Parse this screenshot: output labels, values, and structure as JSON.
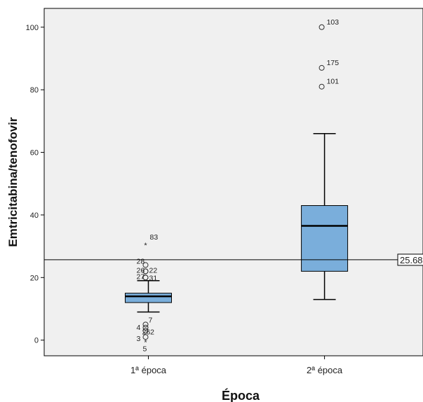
{
  "chart_data": {
    "type": "boxplot",
    "title": "",
    "xlabel": "Época",
    "ylabel": "Emtricitabina/tenofovir",
    "ylim": [
      -5,
      106
    ],
    "yticks": [
      0,
      20,
      40,
      60,
      80,
      100
    ],
    "grid": false,
    "categories": [
      "1ª época",
      "2ª época"
    ],
    "boxes": [
      {
        "category": "1ª época",
        "whisker_low": 9,
        "q1": 12,
        "median": 14,
        "q3": 15,
        "whisker_high": 19,
        "outliers": [
          {
            "label": "83",
            "value": 31,
            "type": "extreme"
          },
          {
            "label": "28",
            "value": 24,
            "type": "mild"
          },
          {
            "label": "26",
            "value": 22,
            "type": "mild"
          },
          {
            "label": "22",
            "value": 22,
            "type": "mild"
          },
          {
            "label": "27",
            "value": 20,
            "type": "mild"
          },
          {
            "label": "31",
            "value": 20,
            "type": "mild"
          },
          {
            "label": "7",
            "value": 5,
            "type": "mild"
          },
          {
            "label": "4",
            "value": 4,
            "type": "mild"
          },
          {
            "label": "262",
            "value": 3,
            "type": "mild"
          },
          {
            "label": "3",
            "value": 1,
            "type": "mild"
          },
          {
            "label": "5",
            "value": 0,
            "type": "extreme"
          }
        ]
      },
      {
        "category": "2ª época",
        "whisker_low": 13,
        "q1": 22,
        "median": 36.5,
        "q3": 43,
        "whisker_high": 66,
        "outliers": [
          {
            "label": "103",
            "value": 100,
            "type": "mild"
          },
          {
            "label": "175",
            "value": 87,
            "type": "mild"
          },
          {
            "label": "101",
            "value": 81,
            "type": "mild"
          }
        ]
      }
    ],
    "reference_line": {
      "value": 25.68,
      "label": "25.68"
    },
    "colors": {
      "box_fill": "#7aaedb",
      "plot_bg": "#f0f0f0",
      "line": "#000000"
    }
  }
}
